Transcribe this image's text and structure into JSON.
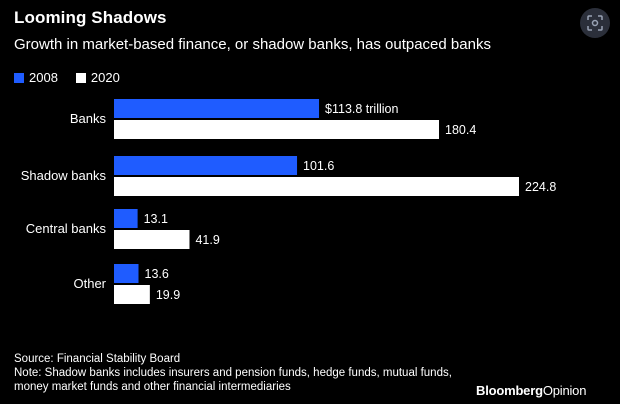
{
  "header": {
    "title": "Looming Shadows",
    "subtitle": "Growth in market-based finance, or shadow banks, has outpaced banks"
  },
  "colors": {
    "background": "#000000",
    "series_2008": "#1f5cff",
    "series_2020": "#ffffff",
    "text": "#ffffff"
  },
  "chart_data": {
    "type": "bar",
    "orientation": "horizontal",
    "categories": [
      "Banks",
      "Shadow banks",
      "Central banks",
      "Other"
    ],
    "series": [
      {
        "name": "2008",
        "values": [
          113.8,
          101.6,
          13.1,
          13.6
        ]
      },
      {
        "name": "2020",
        "values": [
          180.4,
          224.8,
          41.9,
          19.9
        ]
      }
    ],
    "data_labels": [
      [
        "$113.8 trillion",
        "101.6",
        "13.1",
        "13.6"
      ],
      [
        "180.4",
        "224.8",
        "41.9",
        "19.9"
      ]
    ],
    "title": "Looming Shadows",
    "subtitle": "Growth in market-based finance, or shadow banks, has outpaced banks",
    "xlabel": "",
    "ylabel": "",
    "xlim": [
      0,
      224.8
    ],
    "grid": false,
    "legend": "top-left"
  },
  "footer": {
    "source": "Source: Financial Stability Board",
    "note": "Note: Shadow banks includes insurers and pension funds, hedge funds, mutual funds, money market funds and other financial intermediaries"
  },
  "brand": {
    "part1": "Bloomberg",
    "part2": "Opinion"
  },
  "icons": {
    "lens": "lens-search-icon"
  }
}
